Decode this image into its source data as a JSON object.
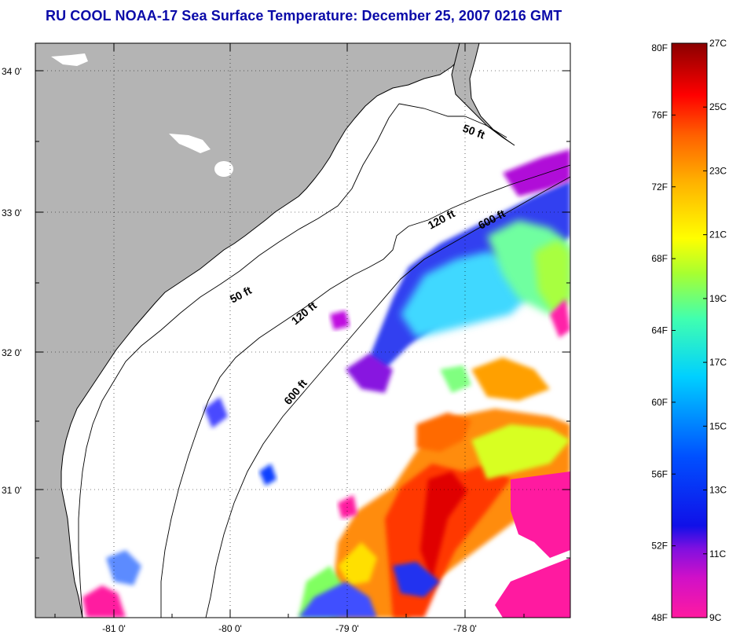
{
  "title": "RU COOL  NOAA-17  Sea Surface Temperature:  December 25, 2007 0216 GMT",
  "map": {
    "lat_labels": [
      "34 0'",
      "33 0'",
      "32 0'",
      "31 0'"
    ],
    "lon_labels": [
      "-81 0'",
      "-80 0'",
      "-79 0'",
      "-78 0'"
    ],
    "contours": [
      {
        "label": "50 ft"
      },
      {
        "label": "120 ft"
      },
      {
        "label": "600 ft"
      },
      {
        "label": "50 ft"
      },
      {
        "label": "120 ft"
      },
      {
        "label": "600 ft"
      }
    ],
    "land_color": "#b4b4b4",
    "ocean_color": "#ffffff"
  },
  "colorbar": {
    "fahrenheit_labels": [
      "80F",
      "76F",
      "72F",
      "68F",
      "64F",
      "60F",
      "56F",
      "52F",
      "48F"
    ],
    "celsius_labels": [
      "27C",
      "25C",
      "23C",
      "21C",
      "19C",
      "17C",
      "15C",
      "13C",
      "11C",
      "9C"
    ],
    "range_f": [
      48,
      80
    ],
    "range_c": [
      9,
      27
    ],
    "colors": [
      "#ff1aa0",
      "#a010d8",
      "#2a10e0",
      "#0060ff",
      "#00c8ff",
      "#40ffb0",
      "#a8ff30",
      "#ffff00",
      "#ffb000",
      "#ff6000",
      "#ff0000",
      "#8a0000"
    ]
  }
}
